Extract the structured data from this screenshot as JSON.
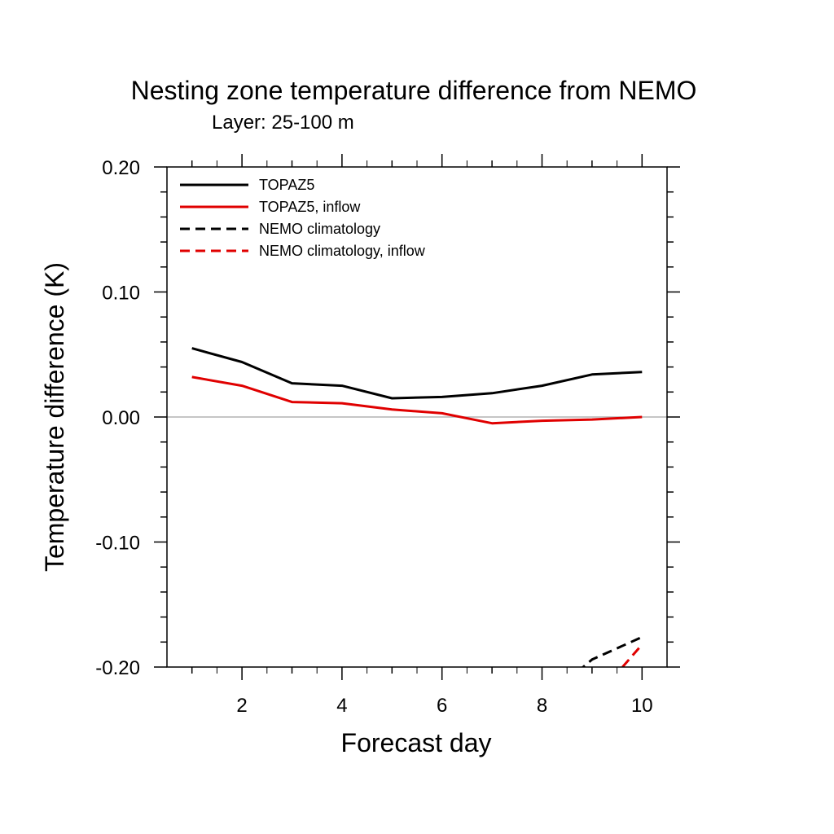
{
  "chart_data": {
    "type": "line",
    "title": "Nesting zone temperature difference from NEMO",
    "subtitle": "Layer: 25-100 m",
    "xlabel": "Forecast day",
    "ylabel": "Temperature difference (K)",
    "xlim": [
      0.5,
      10.5
    ],
    "ylim": [
      -0.2,
      0.2
    ],
    "xticks": [
      2,
      4,
      6,
      8,
      10
    ],
    "xtick_labels": [
      "2",
      "4",
      "6",
      "8",
      "10"
    ],
    "yticks": [
      -0.2,
      -0.1,
      0.0,
      0.1,
      0.2
    ],
    "ytick_labels": [
      "-0.20",
      "-0.10",
      "0.00",
      "0.10",
      "0.20"
    ],
    "zero_line": true,
    "grid": false,
    "legend_position": "top-left",
    "series": [
      {
        "name": "TOPAZ5",
        "color": "#000000",
        "style": "solid",
        "x": [
          1,
          2,
          3,
          4,
          5,
          6,
          7,
          8,
          9,
          10
        ],
        "y": [
          0.055,
          0.044,
          0.027,
          0.025,
          0.015,
          0.016,
          0.019,
          0.025,
          0.034,
          0.036
        ]
      },
      {
        "name": "TOPAZ5, inflow",
        "color": "#e00000",
        "style": "solid",
        "x": [
          1,
          2,
          3,
          4,
          5,
          6,
          7,
          8,
          9,
          10
        ],
        "y": [
          0.032,
          0.025,
          0.012,
          0.011,
          0.006,
          0.003,
          -0.005,
          -0.003,
          -0.002,
          0.0
        ]
      },
      {
        "name": "NEMO climatology",
        "color": "#000000",
        "style": "dashed",
        "x": [
          8,
          9,
          10
        ],
        "y": [
          -0.228,
          -0.194,
          -0.176
        ]
      },
      {
        "name": "NEMO climatology, inflow",
        "color": "#e00000",
        "style": "dashed",
        "x": [
          9,
          10
        ],
        "y": [
          -0.228,
          -0.182
        ]
      }
    ]
  }
}
